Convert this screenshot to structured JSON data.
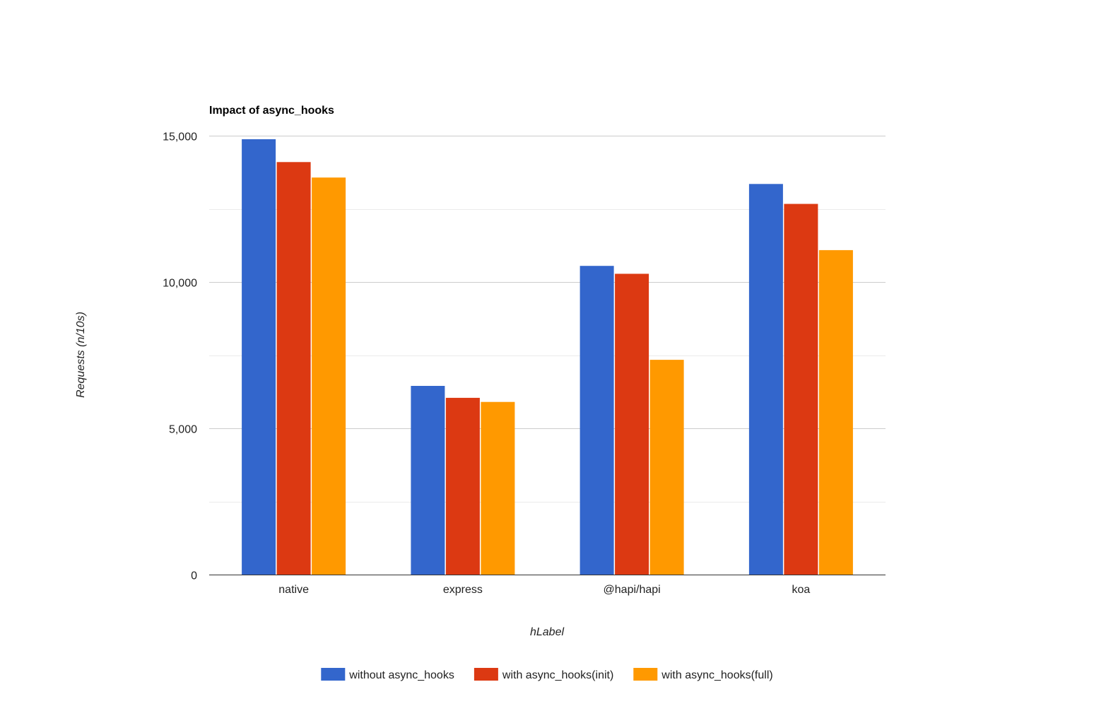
{
  "chart_data": {
    "type": "bar",
    "title": "Impact of async_hooks",
    "xlabel": "hLabel",
    "ylabel": "Requests (n/10s)",
    "categories": [
      "native",
      "express",
      "@hapi/hapi",
      "koa"
    ],
    "series": [
      {
        "name": "without async_hooks",
        "color": "#3366cc",
        "values": [
          14880,
          6450,
          10550,
          13350
        ]
      },
      {
        "name": "with async_hooks(init)",
        "color": "#dc3912",
        "values": [
          14100,
          6040,
          10280,
          12670
        ]
      },
      {
        "name": "with async_hooks(full)",
        "color": "#ff9900",
        "values": [
          13570,
          5900,
          7340,
          11090
        ]
      }
    ],
    "ylim": [
      0,
      15000
    ],
    "yticks": [
      0,
      5000,
      10000,
      15000
    ],
    "ytick_labels": [
      "0",
      "5,000",
      "10,000",
      "15,000"
    ],
    "minor_gridlines": [
      2500,
      7500,
      12500
    ],
    "grid": true,
    "legend_position": "bottom"
  }
}
